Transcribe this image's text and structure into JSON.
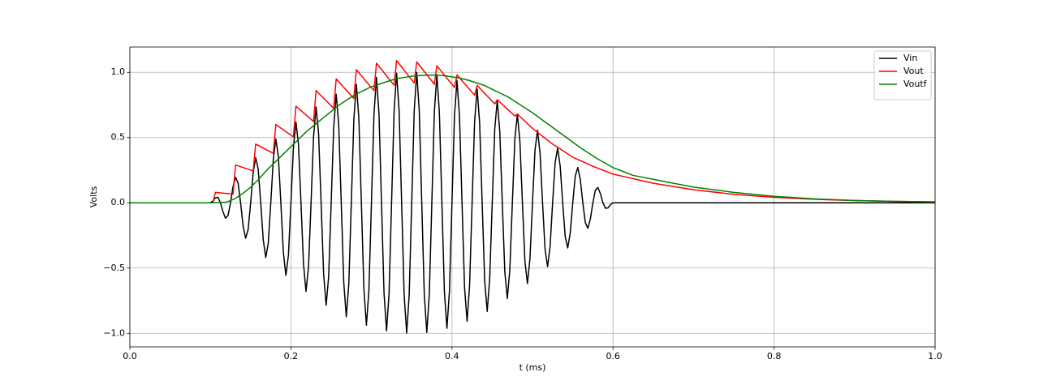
{
  "chart_data": {
    "type": "line",
    "xlabel": "t (ms)",
    "ylabel": "Volts",
    "xlim": [
      0,
      1
    ],
    "ylim": [
      -1.104,
      1.194
    ],
    "xticks": [
      {
        "value": 0,
        "label": "0.0"
      },
      {
        "value": 0.2,
        "label": "0.2"
      },
      {
        "value": 0.4,
        "label": "0.4"
      },
      {
        "value": 0.6,
        "label": "0.6"
      },
      {
        "value": 0.8,
        "label": "0.8"
      },
      {
        "value": 1,
        "label": "1.0"
      }
    ],
    "yticks": [
      {
        "value": -1,
        "label": "−1.0"
      },
      {
        "value": -0.5,
        "label": "−0.5"
      },
      {
        "value": 0,
        "label": "0.0"
      },
      {
        "value": 0.5,
        "label": "0.5"
      },
      {
        "value": 1,
        "label": "1.0"
      }
    ],
    "grid": true,
    "legend": "upper right",
    "series": [
      {
        "name": "Vin",
        "color": "#000000",
        "x": [
          0,
          0.1,
          0.103125,
          0.10625,
          0.109375,
          0.1125,
          0.115625,
          0.11875,
          0.121875,
          0.125,
          0.128125,
          0.13125,
          0.134375,
          0.1375,
          0.140625,
          0.14375,
          0.146875,
          0.15,
          0.153125,
          0.15625,
          0.159375,
          0.1625,
          0.165625,
          0.16875,
          0.171875,
          0.175,
          0.178125,
          0.18125,
          0.184375,
          0.1875,
          0.190625,
          0.19375,
          0.196875,
          0.2,
          0.203125,
          0.20625,
          0.209375,
          0.2125,
          0.215625,
          0.21875,
          0.221875,
          0.225,
          0.228125,
          0.23125,
          0.234375,
          0.2375,
          0.240625,
          0.24375,
          0.246875,
          0.25,
          0.253125,
          0.25625,
          0.259375,
          0.2625,
          0.265625,
          0.26875,
          0.271875,
          0.275,
          0.278125,
          0.28125,
          0.284375,
          0.2875,
          0.290625,
          0.29375,
          0.296875,
          0.3,
          0.303125,
          0.30625,
          0.309375,
          0.3125,
          0.315625,
          0.31875,
          0.321875,
          0.325,
          0.328125,
          0.33125,
          0.334375,
          0.3375,
          0.340625,
          0.34375,
          0.346875,
          0.35,
          0.353125,
          0.35625,
          0.359375,
          0.3625,
          0.365625,
          0.36875,
          0.371875,
          0.375,
          0.378125,
          0.38125,
          0.384375,
          0.3875,
          0.390625,
          0.39375,
          0.396875,
          0.4,
          0.403125,
          0.40625,
          0.409375,
          0.4125,
          0.415625,
          0.41875,
          0.421875,
          0.425,
          0.428125,
          0.43125,
          0.434375,
          0.4375,
          0.440625,
          0.44375,
          0.446875,
          0.45,
          0.453125,
          0.45625,
          0.459375,
          0.4625,
          0.465625,
          0.46875,
          0.471875,
          0.475,
          0.478125,
          0.48125,
          0.484375,
          0.4875,
          0.490625,
          0.49375,
          0.496875,
          0.5,
          0.503125,
          0.50625,
          0.509375,
          0.5125,
          0.515625,
          0.51875,
          0.521875,
          0.525,
          0.528125,
          0.53125,
          0.534375,
          0.5375,
          0.540625,
          0.54375,
          0.546875,
          0.55,
          0.553125,
          0.55625,
          0.559375,
          0.5625,
          0.565625,
          0.56875,
          0.571875,
          0.575,
          0.578125,
          0.58125,
          0.584375,
          0.5875,
          0.590625,
          0.59375,
          0.596875,
          0.6,
          1
        ],
        "values": [
          0,
          0,
          0.014,
          0.039,
          0.042,
          0,
          -0.069,
          -0.118,
          -0.097,
          0,
          0.124,
          0.195,
          0.152,
          0,
          -0.179,
          -0.271,
          -0.205,
          0,
          0.232,
          0.346,
          0.258,
          0,
          -0.283,
          -0.419,
          -0.309,
          0,
          0.333,
          0.489,
          0.358,
          0,
          -0.381,
          -0.556,
          -0.404,
          0,
          0.427,
          0.619,
          0.449,
          0,
          -0.47,
          -0.679,
          -0.49,
          0,
          0.51,
          0.734,
          0.529,
          0,
          -0.547,
          -0.785,
          -0.564,
          0,
          0.58,
          0.832,
          0.596,
          0,
          -0.61,
          -0.873,
          -0.624,
          0,
          0.636,
          0.908,
          0.648,
          0,
          -0.658,
          -0.938,
          -0.668,
          0,
          0.677,
          0.962,
          0.684,
          0,
          -0.691,
          -0.981,
          -0.696,
          0,
          0.7,
          0.993,
          0.704,
          0,
          -0.706,
          -0.999,
          -0.707,
          0,
          0.707,
          0.999,
          0.706,
          0,
          -0.704,
          -0.993,
          -0.7,
          0,
          0.696,
          0.981,
          0.691,
          0,
          -0.684,
          -0.962,
          -0.677,
          0,
          0.668,
          0.938,
          0.658,
          0,
          -0.648,
          -0.908,
          -0.636,
          0,
          0.624,
          0.873,
          0.61,
          0,
          -0.596,
          -0.832,
          -0.58,
          0,
          0.564,
          0.785,
          0.547,
          0,
          -0.529,
          -0.734,
          -0.51,
          0,
          0.49,
          0.679,
          0.47,
          0,
          -0.449,
          -0.619,
          -0.427,
          0,
          0.404,
          0.556,
          0.381,
          0,
          -0.358,
          -0.489,
          -0.333,
          0,
          0.309,
          0.419,
          0.283,
          0,
          -0.258,
          -0.346,
          -0.232,
          0,
          0.205,
          0.271,
          0.179,
          0,
          -0.152,
          -0.195,
          -0.124,
          0,
          0.097,
          0.118,
          0.069,
          0,
          -0.042,
          -0.039,
          -0.014,
          0,
          0
        ]
      },
      {
        "name": "Vout",
        "color": "#ff0000",
        "x": [
          0,
          0.103125,
          0.10625,
          0.128125,
          0.13125,
          0.153125,
          0.15625,
          0.178125,
          0.18125,
          0.203125,
          0.20625,
          0.228125,
          0.23125,
          0.253125,
          0.25625,
          0.278125,
          0.28125,
          0.303125,
          0.30625,
          0.328125,
          0.33125,
          0.353125,
          0.35625,
          0.378125,
          0.38125,
          0.403125,
          0.40625,
          0.428125,
          0.43125,
          0.453125,
          0.45625,
          0.478125,
          0.48125,
          0.5,
          0.525,
          0.55,
          0.575,
          0.6,
          0.65,
          0.7,
          0.75,
          0.8,
          0.85,
          0.9,
          0.95,
          1
        ],
        "values": [
          0,
          0,
          0.08,
          0.067,
          0.29,
          0.244,
          0.45,
          0.379,
          0.6,
          0.505,
          0.74,
          0.623,
          0.86,
          0.724,
          0.95,
          0.8,
          1.02,
          0.859,
          1.07,
          0.901,
          1.09,
          0.918,
          1.08,
          0.909,
          1.05,
          0.884,
          0.98,
          0.825,
          0.9,
          0.758,
          0.79,
          0.665,
          0.68,
          0.57,
          0.45,
          0.35,
          0.28,
          0.22,
          0.15,
          0.1,
          0.065,
          0.042,
          0.027,
          0.017,
          0.011,
          0.007
        ]
      },
      {
        "name": "Voutf",
        "color": "#008000",
        "x": [
          0,
          0.1,
          0.12,
          0.13,
          0.14,
          0.15,
          0.16,
          0.17,
          0.18,
          0.19,
          0.2,
          0.21,
          0.22,
          0.23,
          0.24,
          0.25,
          0.26,
          0.27,
          0.28,
          0.29,
          0.3,
          0.31,
          0.32,
          0.33,
          0.34,
          0.35,
          0.36,
          0.375,
          0.39,
          0.4,
          0.41,
          0.42,
          0.43,
          0.44,
          0.45,
          0.46,
          0.47,
          0.48,
          0.49,
          0.5,
          0.52,
          0.54,
          0.56,
          0.58,
          0.6,
          0.625,
          0.65,
          0.675,
          0.7,
          0.75,
          0.8,
          0.85,
          0.9,
          0.95,
          1
        ],
        "values": [
          0,
          0,
          0.005,
          0.03,
          0.07,
          0.12,
          0.18,
          0.25,
          0.31,
          0.37,
          0.43,
          0.49,
          0.55,
          0.6,
          0.65,
          0.7,
          0.75,
          0.79,
          0.83,
          0.86,
          0.89,
          0.91,
          0.93,
          0.95,
          0.96,
          0.97,
          0.975,
          0.98,
          0.975,
          0.965,
          0.955,
          0.94,
          0.92,
          0.9,
          0.87,
          0.84,
          0.81,
          0.77,
          0.73,
          0.69,
          0.6,
          0.51,
          0.42,
          0.34,
          0.27,
          0.21,
          0.18,
          0.15,
          0.12,
          0.08,
          0.05,
          0.03,
          0.018,
          0.011,
          0.007
        ]
      }
    ]
  }
}
